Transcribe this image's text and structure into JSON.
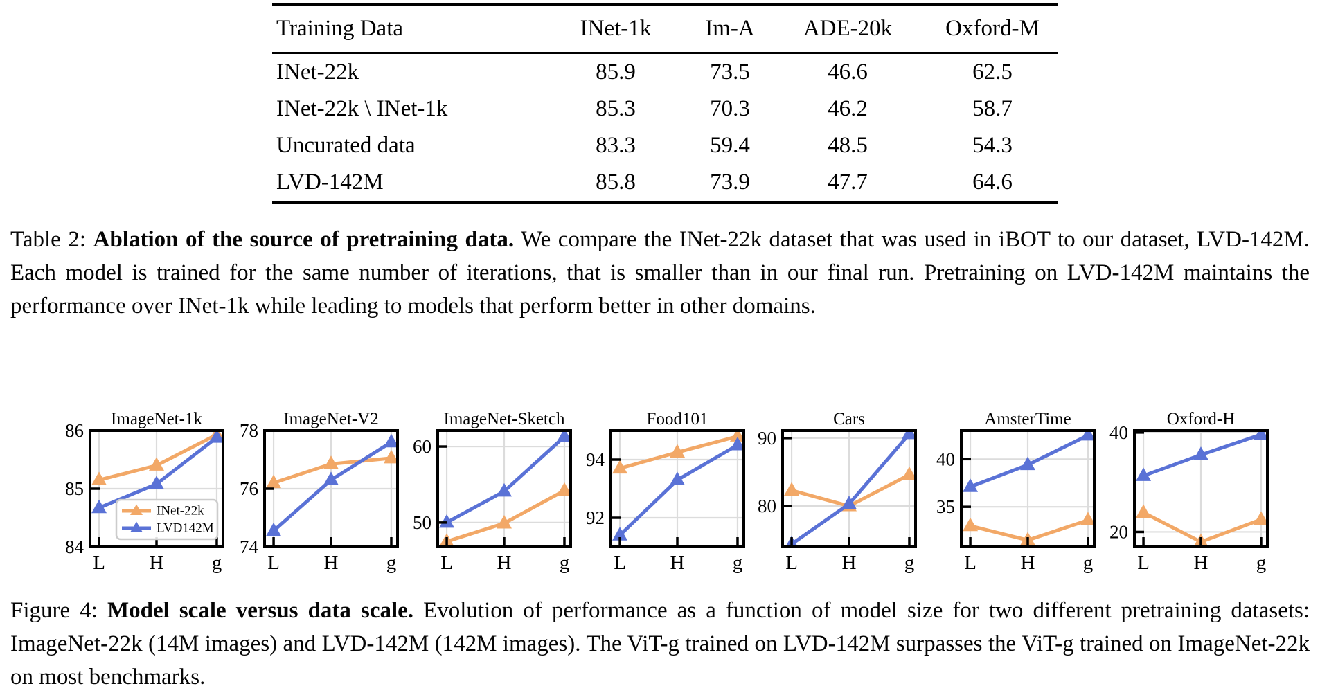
{
  "table": {
    "headers": [
      "Training Data",
      "INet-1k",
      "Im-A",
      "ADE-20k",
      "Oxford-M"
    ],
    "rows": [
      [
        "INet-22k",
        "85.9",
        "73.5",
        "46.6",
        "62.5"
      ],
      [
        "INet-22k \\ INet-1k",
        "85.3",
        "70.3",
        "46.2",
        "58.7"
      ],
      [
        "Uncurated data",
        "83.3",
        "59.4",
        "48.5",
        "54.3"
      ],
      [
        "LVD-142M",
        "85.8",
        "73.9",
        "47.7",
        "64.6"
      ]
    ]
  },
  "table_caption": {
    "label": "Table 2:",
    "bold": "Ablation of the source of pretraining data.",
    "text": "We compare the INet-22k dataset that was used in iBOT to our dataset, LVD-142M. Each model is trained for the same number of iterations, that is smaller than in our final run. Pretraining on LVD-142M maintains the performance over INet-1k while leading to models that perform better in other domains."
  },
  "figure_caption": {
    "label": "Figure 4:",
    "bold": "Model scale versus data scale.",
    "text": "Evolution of performance as a function of model size for two different pretraining datasets: ImageNet-22k (14M images) and LVD-142M (142M images). The ViT-g trained on LVD-142M surpasses the ViT-g trained on ImageNet-22k on most benchmarks."
  },
  "colors": {
    "inet22k": "#F2A867",
    "lvd142m": "#5A72D6",
    "grid": "#DCDCDC",
    "spine": "#000000"
  },
  "chart_data": [
    {
      "type": "line",
      "title": "ImageNet-1k",
      "x": [
        "L",
        "H",
        "g"
      ],
      "ylim": [
        84,
        86
      ],
      "yticks": [
        84,
        85,
        86
      ],
      "grid": true,
      "legend": true,
      "series": [
        {
          "name": "INet-22k",
          "color": "#F2A867",
          "values": [
            85.15,
            85.4,
            85.93
          ]
        },
        {
          "name": "LVD142M",
          "color": "#5A72D6",
          "values": [
            84.67,
            85.08,
            85.88
          ]
        }
      ]
    },
    {
      "type": "line",
      "title": "ImageNet-V2",
      "x": [
        "L",
        "H",
        "g"
      ],
      "ylim": [
        74,
        78
      ],
      "yticks": [
        74,
        76,
        78
      ],
      "grid": true,
      "legend": false,
      "series": [
        {
          "name": "INet-22k",
          "color": "#F2A867",
          "values": [
            76.2,
            76.85,
            77.05
          ]
        },
        {
          "name": "LVD142M",
          "color": "#5A72D6",
          "values": [
            74.55,
            76.3,
            77.6
          ]
        }
      ]
    },
    {
      "type": "line",
      "title": "ImageNet-Sketch",
      "x": [
        "L",
        "H",
        "g"
      ],
      "ylim": [
        46.8,
        62.1
      ],
      "yticks": [
        50,
        60
      ],
      "grid": true,
      "legend": false,
      "series": [
        {
          "name": "INet-22k",
          "color": "#F2A867",
          "values": [
            47.5,
            49.9,
            54.2
          ]
        },
        {
          "name": "LVD142M",
          "color": "#5A72D6",
          "values": [
            50.0,
            54.1,
            61.3
          ]
        }
      ]
    },
    {
      "type": "line",
      "title": "Food101",
      "x": [
        "L",
        "H",
        "g"
      ],
      "ylim": [
        91.0,
        95.0
      ],
      "yticks": [
        92,
        94
      ],
      "grid": true,
      "legend": false,
      "series": [
        {
          "name": "INet-22k",
          "color": "#F2A867",
          "values": [
            93.7,
            94.25,
            94.8
          ]
        },
        {
          "name": "LVD142M",
          "color": "#5A72D6",
          "values": [
            91.4,
            93.3,
            94.5
          ]
        }
      ]
    },
    {
      "type": "line",
      "title": "Cars",
      "x": [
        "L",
        "H",
        "g"
      ],
      "ylim": [
        74.0,
        91.1
      ],
      "yticks": [
        80,
        90
      ],
      "grid": true,
      "legend": false,
      "series": [
        {
          "name": "INet-22k",
          "color": "#F2A867",
          "values": [
            82.3,
            80.0,
            84.6
          ]
        },
        {
          "name": "LVD142M",
          "color": "#5A72D6",
          "values": [
            74.4,
            80.3,
            90.6
          ]
        }
      ]
    },
    {
      "type": "line",
      "title": "AmsterTime",
      "x": [
        "L",
        "H",
        "g"
      ],
      "ylim": [
        30.8,
        43.0
      ],
      "yticks": [
        35,
        40
      ],
      "grid": true,
      "legend": false,
      "series": [
        {
          "name": "INet-22k",
          "color": "#F2A867",
          "values": [
            33.0,
            31.5,
            33.6
          ]
        },
        {
          "name": "LVD142M",
          "color": "#5A72D6",
          "values": [
            37.1,
            39.4,
            42.5
          ]
        }
      ]
    },
    {
      "type": "line",
      "title": "Oxford-H",
      "x": [
        "L",
        "H",
        "g"
      ],
      "ylim": [
        17.0,
        40.4
      ],
      "yticks": [
        20,
        40
      ],
      "grid": true,
      "legend": false,
      "series": [
        {
          "name": "INet-22k",
          "color": "#F2A867",
          "values": [
            23.9,
            18.0,
            22.5
          ]
        },
        {
          "name": "LVD142M",
          "color": "#5A72D6",
          "values": [
            31.3,
            35.5,
            39.6
          ]
        }
      ]
    }
  ]
}
